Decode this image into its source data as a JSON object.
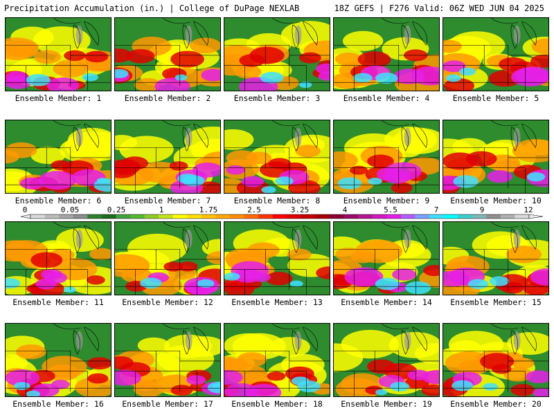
{
  "header": {
    "title": "Precipitation Accumulation (in.) | College of DuPage NEXLAB",
    "valid": "18Z GEFS | F276 Valid: 06Z WED JUN 04 2025"
  },
  "colorbar": {
    "labels": [
      "0",
      "0.05",
      "0.25",
      "1",
      "1.75",
      "2.5",
      "3.25",
      "4",
      "5.5",
      "7",
      "9",
      "12"
    ],
    "colors": [
      "#d9d9d9",
      "#bdbdbd",
      "#a6a6a6",
      "#8c8c8c",
      "#2f7f2f",
      "#1f6b1f",
      "#3da33d",
      "#55b830",
      "#8fcc2a",
      "#c6e41c",
      "#ffff00",
      "#ffe000",
      "#ffc400",
      "#ffa800",
      "#ff8c00",
      "#ff6a00",
      "#ff3300",
      "#ff0000",
      "#e00000",
      "#c40000",
      "#a80000",
      "#8a0030",
      "#9b0a6b",
      "#b5148f",
      "#d11ac0",
      "#e61ee8",
      "#b45cff",
      "#7aa0ff",
      "#3ee0ff",
      "#00ffff",
      "#3ccfd0",
      "#7fb8b8",
      "#8f8f8f",
      "#b0b0b0",
      "#d8d8d8"
    ]
  },
  "members": [
    {
      "label": "Ensemble Member: 1"
    },
    {
      "label": "Ensemble Member: 2"
    },
    {
      "label": "Ensemble Member: 3"
    },
    {
      "label": "Ensemble Member: 4"
    },
    {
      "label": "Ensemble Member: 5"
    },
    {
      "label": "Ensemble Member: 6"
    },
    {
      "label": "Ensemble Member: 7"
    },
    {
      "label": "Ensemble Member: 8"
    },
    {
      "label": "Ensemble Member: 9"
    },
    {
      "label": "Ensemble Member: 10"
    },
    {
      "label": "Ensemble Member: 11"
    },
    {
      "label": "Ensemble Member: 12"
    },
    {
      "label": "Ensemble Member: 13"
    },
    {
      "label": "Ensemble Member: 14"
    },
    {
      "label": "Ensemble Member: 15"
    },
    {
      "label": "Ensemble Member: 16"
    },
    {
      "label": "Ensemble Member: 17"
    },
    {
      "label": "Ensemble Member: 18"
    },
    {
      "label": "Ensemble Member: 19"
    },
    {
      "label": "Ensemble Member: 20"
    }
  ],
  "colors": {
    "base_green": "#2e8b2e",
    "yellow": "#ffff00",
    "orange": "#ff9900",
    "red": "#e00000",
    "magenta": "#e61ee8",
    "cyan": "#3ee0ff",
    "gray": "#9a9a9a"
  }
}
